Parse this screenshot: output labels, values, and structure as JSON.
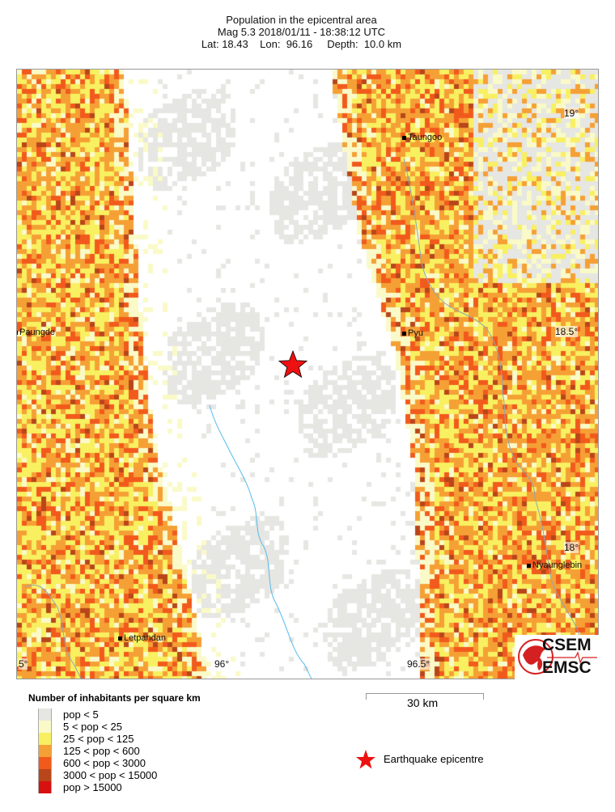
{
  "header": {
    "title": "Population in the epicentral area",
    "line2": "Mag 5.3  2018/01/11 - 18:38:12 UTC",
    "line3": "Lat: 18.43    Lon:  96.16     Depth:  10.0 km"
  },
  "map": {
    "lat_ticks": [
      "19°",
      "18.5°",
      "18°"
    ],
    "lon_ticks": [
      "5°",
      "96°",
      "96.5°"
    ],
    "cities": [
      "Taungoo",
      "Pyu",
      "Paungde",
      "Nyaunglebin",
      "Letpandan"
    ],
    "epicentre_color": "#ee1111",
    "river_color": "#55bbee"
  },
  "logo": {
    "line1": "CSEM",
    "line2": "EMSC"
  },
  "scale": {
    "label": "30 km"
  },
  "legend": {
    "title": "Number of inhabitants per square km",
    "items": [
      {
        "label": "pop < 5",
        "color": "#e6e6e2"
      },
      {
        "label": "5 < pop < 25",
        "color": "#fafac8"
      },
      {
        "label": "25 < pop < 125",
        "color": "#f8f060"
      },
      {
        "label": "125 < pop < 600",
        "color": "#f5a035"
      },
      {
        "label": "600 < pop < 3000",
        "color": "#f25a1c"
      },
      {
        "label": "3000 < pop < 15000",
        "color": "#b8461a"
      },
      {
        "label": "pop > 15000",
        "color": "#d81010"
      }
    ],
    "epicentre_label": "Earthquake epicentre"
  }
}
